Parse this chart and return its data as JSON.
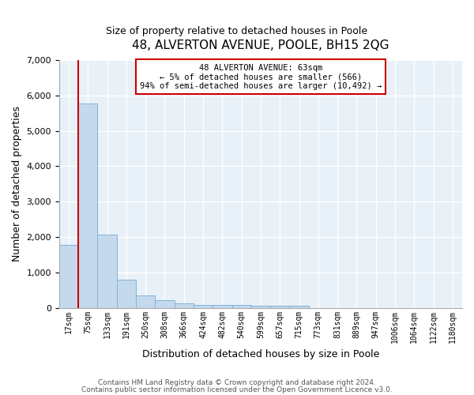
{
  "title": "48, ALVERTON AVENUE, POOLE, BH15 2QG",
  "subtitle": "Size of property relative to detached houses in Poole",
  "xlabel": "Distribution of detached houses by size in Poole",
  "ylabel": "Number of detached properties",
  "bar_color": "#c5d9ed",
  "bar_edge_color": "#7fb3d6",
  "background_color": "#e8f0f8",
  "grid_color": "#ffffff",
  "annotation_box_color": "#cc0000",
  "annotation_line_color": "#cc0000",
  "categories": [
    "17sqm",
    "75sqm",
    "133sqm",
    "191sqm",
    "250sqm",
    "308sqm",
    "366sqm",
    "424sqm",
    "482sqm",
    "540sqm",
    "599sqm",
    "657sqm",
    "715sqm",
    "773sqm",
    "831sqm",
    "889sqm",
    "947sqm",
    "1006sqm",
    "1064sqm",
    "1122sqm",
    "1180sqm"
  ],
  "values": [
    1780,
    5780,
    2070,
    790,
    360,
    215,
    120,
    95,
    90,
    80,
    60,
    55,
    60,
    0,
    0,
    0,
    0,
    0,
    0,
    0,
    0
  ],
  "ylim": [
    0,
    7000
  ],
  "yticks": [
    0,
    1000,
    2000,
    3000,
    4000,
    5000,
    6000,
    7000
  ],
  "marker_bin_index": 0,
  "annotation_line1": "48 ALVERTON AVENUE: 63sqm",
  "annotation_line2": "← 5% of detached houses are smaller (566)",
  "annotation_line3": "94% of semi-detached houses are larger (10,492) →",
  "footer1": "Contains HM Land Registry data © Crown copyright and database right 2024.",
  "footer2": "Contains public sector information licensed under the Open Government Licence v3.0.",
  "fig_bg": "#ffffff"
}
